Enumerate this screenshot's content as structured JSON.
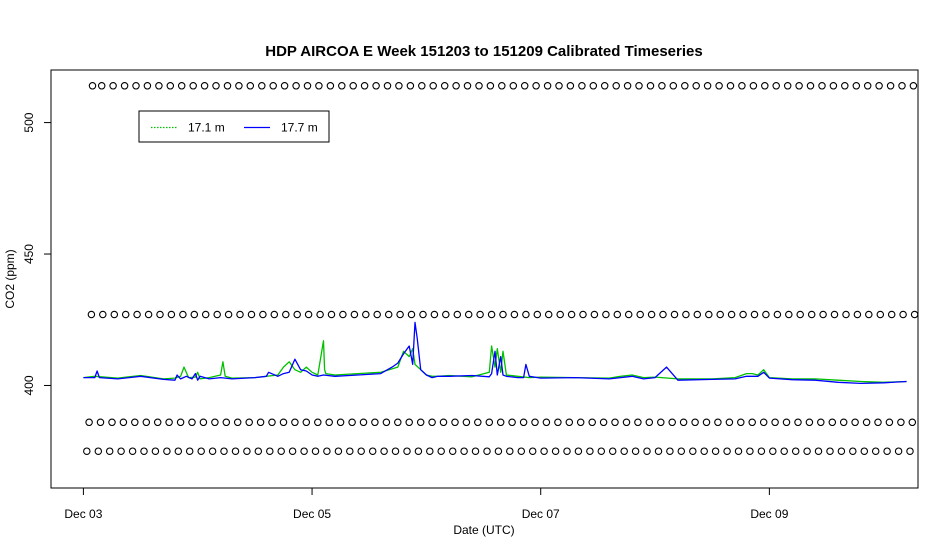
{
  "chart_data": {
    "type": "line",
    "title": "HDP AIRCOA E  Week 151203 to 151209  Calibrated Timeseries",
    "xlabel": "Date (UTC)",
    "ylabel": "CO2 (ppm)",
    "x_unit": "days (UTC)",
    "xlim": [
      0,
      7.3
    ],
    "ylim": [
      361,
      520
    ],
    "x_ticks": [
      {
        "value": 0,
        "label": "Dec 03"
      },
      {
        "value": 2,
        "label": "Dec 05"
      },
      {
        "value": 4,
        "label": "Dec 07"
      },
      {
        "value": 6,
        "label": "Dec 09"
      }
    ],
    "y_ticks": [
      {
        "value": 400,
        "label": "400"
      },
      {
        "value": 450,
        "label": "450"
      },
      {
        "value": 500,
        "label": "500"
      }
    ],
    "grid": false,
    "legend": {
      "position": "top-left",
      "entries": [
        {
          "label": "17.1 m",
          "color": "#00c000",
          "style": "dotted"
        },
        {
          "label": "17.7 m",
          "color": "#0000ff",
          "style": "solid"
        }
      ]
    },
    "series": [
      {
        "name": "17.1 m",
        "color": "#00c000",
        "x": [
          0.0,
          0.1,
          0.3,
          0.5,
          0.7,
          0.8,
          0.85,
          0.88,
          0.92,
          0.98,
          1.0,
          1.02,
          1.1,
          1.2,
          1.22,
          1.24,
          1.3,
          1.5,
          1.7,
          1.75,
          1.8,
          1.85,
          1.9,
          1.95,
          2.0,
          2.05,
          2.1,
          2.11,
          2.12,
          2.2,
          2.4,
          2.6,
          2.75,
          2.8,
          2.85,
          2.88,
          2.9,
          2.95,
          3.0,
          3.05,
          3.1,
          3.2,
          3.4,
          3.55,
          3.57,
          3.6,
          3.62,
          3.65,
          3.67,
          3.7,
          3.8,
          3.9,
          4.0,
          4.3,
          4.6,
          4.7,
          4.8,
          4.9,
          5.0,
          5.2,
          5.5,
          5.7,
          5.8,
          5.85,
          5.9,
          5.95,
          6.0,
          6.2,
          6.4,
          6.6,
          6.8,
          7.0,
          7.2
        ],
        "values": [
          403,
          403.5,
          402.8,
          403.8,
          402.5,
          402.8,
          403.5,
          407,
          403,
          403.2,
          405,
          402.5,
          403,
          404,
          409,
          403.5,
          402.8,
          403,
          404,
          407,
          409,
          406,
          405,
          407,
          405,
          404,
          417,
          406,
          404.5,
          404,
          404.5,
          405,
          407,
          413,
          411,
          414,
          408,
          406,
          404,
          403.5,
          403.5,
          403.8,
          403.3,
          405,
          415,
          407,
          414,
          405,
          413,
          404,
          403.5,
          403,
          403.2,
          403,
          402.8,
          403.5,
          404,
          403,
          403.2,
          402.5,
          402.5,
          403,
          404.5,
          404.5,
          404,
          406,
          403,
          402.5,
          402.5,
          402,
          401.5,
          401.2,
          401.5
        ]
      },
      {
        "name": "17.7 m",
        "color": "#0000ff",
        "x": [
          0.0,
          0.1,
          0.12,
          0.14,
          0.3,
          0.5,
          0.7,
          0.8,
          0.82,
          0.85,
          0.9,
          0.95,
          0.98,
          1.0,
          1.02,
          1.1,
          1.2,
          1.3,
          1.5,
          1.6,
          1.62,
          1.7,
          1.75,
          1.8,
          1.85,
          1.9,
          1.95,
          2.0,
          2.05,
          2.1,
          2.2,
          2.4,
          2.6,
          2.7,
          2.75,
          2.8,
          2.85,
          2.88,
          2.9,
          2.92,
          2.95,
          3.0,
          3.05,
          3.1,
          3.2,
          3.4,
          3.55,
          3.57,
          3.6,
          3.62,
          3.65,
          3.67,
          3.7,
          3.8,
          3.85,
          3.87,
          3.9,
          4.0,
          4.3,
          4.6,
          4.7,
          4.8,
          4.9,
          5.0,
          5.1,
          5.2,
          5.5,
          5.7,
          5.8,
          5.85,
          5.9,
          5.95,
          6.0,
          6.2,
          6.4,
          6.6,
          6.8,
          7.0,
          7.2
        ],
        "values": [
          403,
          403,
          405.5,
          403,
          402.5,
          403.5,
          402.3,
          402,
          404,
          402.5,
          403.5,
          402.5,
          404.5,
          402,
          403.5,
          402.5,
          403,
          402.5,
          403,
          403.5,
          405,
          403.5,
          404.5,
          405,
          410,
          406,
          405.5,
          404,
          403.5,
          404,
          403.5,
          404,
          404.5,
          407,
          408.5,
          412,
          415,
          408,
          424,
          418,
          406,
          404,
          403,
          403.5,
          403.5,
          403.8,
          403.3,
          404.5,
          413,
          404,
          411,
          404,
          403.5,
          403,
          403,
          408,
          403.5,
          402.8,
          403,
          402.5,
          403,
          403.5,
          402.5,
          403,
          407,
          402,
          402.3,
          402.5,
          403.5,
          403.5,
          403.5,
          405,
          402.8,
          402.2,
          402,
          401.2,
          400.8,
          401,
          401.5
        ]
      },
      {
        "name": "",
        "type": "scatter",
        "marker": "open-circle",
        "x": [
          0.08,
          0.16,
          0.26,
          0.36,
          0.46,
          0.56,
          0.66,
          0.76,
          0.86,
          0.96,
          1.06,
          1.16,
          1.26,
          1.36,
          1.46,
          1.56,
          1.66,
          1.76,
          1.86,
          1.96,
          2.06,
          2.16,
          2.26,
          2.36,
          2.46,
          2.56,
          2.66,
          2.76,
          2.86,
          2.96,
          3.06,
          3.16,
          3.26,
          3.36,
          3.46,
          3.56,
          3.66,
          3.76,
          3.86,
          3.96,
          4.06,
          4.16,
          4.26,
          4.36,
          4.46,
          4.56,
          4.66,
          4.76,
          4.86,
          4.96,
          5.06,
          5.16,
          5.26,
          5.36,
          5.46,
          5.56,
          5.66,
          5.76,
          5.86,
          5.96,
          6.06,
          6.16,
          6.26,
          6.36,
          6.46,
          6.56,
          6.66,
          6.76,
          6.86,
          6.96,
          7.06,
          7.16,
          7.26
        ],
        "values": [
          514,
          514,
          514,
          514,
          514,
          514,
          514,
          514,
          514,
          514,
          514,
          514,
          514,
          514,
          514,
          514,
          514,
          514,
          514,
          514,
          514,
          514,
          514,
          514,
          514,
          514,
          514,
          514,
          514,
          514,
          514,
          514,
          514,
          514,
          514,
          514,
          514,
          514,
          514,
          514,
          514,
          514,
          514,
          514,
          514,
          514,
          514,
          514,
          514,
          514,
          514,
          514,
          514,
          514,
          514,
          514,
          514,
          514,
          514,
          514,
          514,
          514,
          514,
          514,
          514,
          514,
          514,
          514,
          514,
          514,
          514,
          514,
          514
        ]
      },
      {
        "name": "",
        "type": "scatter",
        "marker": "open-circle",
        "x": [
          0.07,
          0.17,
          0.27,
          0.37,
          0.47,
          0.57,
          0.67,
          0.77,
          0.87,
          0.97,
          1.07,
          1.17,
          1.27,
          1.37,
          1.47,
          1.57,
          1.67,
          1.77,
          1.87,
          1.97,
          2.07,
          2.17,
          2.27,
          2.37,
          2.47,
          2.57,
          2.67,
          2.77,
          2.87,
          2.97,
          3.07,
          3.17,
          3.27,
          3.37,
          3.47,
          3.57,
          3.67,
          3.77,
          3.87,
          3.97,
          4.07,
          4.17,
          4.27,
          4.37,
          4.47,
          4.57,
          4.67,
          4.77,
          4.87,
          4.97,
          5.07,
          5.17,
          5.27,
          5.37,
          5.47,
          5.57,
          5.67,
          5.77,
          5.87,
          5.97,
          6.07,
          6.17,
          6.27,
          6.37,
          6.47,
          6.57,
          6.67,
          6.77,
          6.87,
          6.97,
          7.07,
          7.17,
          7.27
        ],
        "values": [
          427,
          427,
          427,
          427,
          427,
          427,
          427,
          427,
          427,
          427,
          427,
          427,
          427,
          427,
          427,
          427,
          427,
          427,
          427,
          427,
          427,
          427,
          427,
          427,
          427,
          427,
          427,
          427,
          427,
          427,
          427,
          427,
          427,
          427,
          427,
          427,
          427,
          427,
          427,
          427,
          427,
          427,
          427,
          427,
          427,
          427,
          427,
          427,
          427,
          427,
          427,
          427,
          427,
          427,
          427,
          427,
          427,
          427,
          427,
          427,
          427,
          427,
          427,
          427,
          427,
          427,
          427,
          427,
          427,
          427,
          427,
          427,
          427
        ]
      },
      {
        "name": "",
        "type": "scatter",
        "marker": "open-circle",
        "x": [
          0.05,
          0.15,
          0.25,
          0.35,
          0.45,
          0.55,
          0.65,
          0.75,
          0.85,
          0.95,
          1.05,
          1.15,
          1.25,
          1.35,
          1.45,
          1.55,
          1.65,
          1.75,
          1.85,
          1.95,
          2.05,
          2.15,
          2.25,
          2.35,
          2.45,
          2.55,
          2.65,
          2.75,
          2.85,
          2.95,
          3.05,
          3.15,
          3.25,
          3.35,
          3.45,
          3.55,
          3.65,
          3.75,
          3.85,
          3.95,
          4.05,
          4.15,
          4.25,
          4.35,
          4.45,
          4.55,
          4.65,
          4.75,
          4.85,
          4.95,
          5.05,
          5.15,
          5.25,
          5.35,
          5.45,
          5.55,
          5.65,
          5.75,
          5.85,
          5.95,
          6.05,
          6.15,
          6.25,
          6.35,
          6.45,
          6.55,
          6.65,
          6.75,
          6.85,
          6.95,
          7.05,
          7.15,
          7.25
        ],
        "values": [
          386,
          386,
          386,
          386,
          386,
          386,
          386,
          386,
          386,
          386,
          386,
          386,
          386,
          386,
          386,
          386,
          386,
          386,
          386,
          386,
          386,
          386,
          386,
          386,
          386,
          386,
          386,
          386,
          386,
          386,
          386,
          386,
          386,
          386,
          386,
          386,
          386,
          386,
          386,
          386,
          386,
          386,
          386,
          386,
          386,
          386,
          386,
          386,
          386,
          386,
          386,
          386,
          386,
          386,
          386,
          386,
          386,
          386,
          386,
          386,
          386,
          386,
          386,
          386,
          386,
          386,
          386,
          386,
          386,
          386,
          386,
          386,
          386
        ]
      },
      {
        "name": "",
        "type": "scatter",
        "marker": "open-circle",
        "x": [
          0.03,
          0.13,
          0.23,
          0.33,
          0.43,
          0.53,
          0.63,
          0.73,
          0.83,
          0.93,
          1.03,
          1.13,
          1.23,
          1.33,
          1.43,
          1.53,
          1.63,
          1.73,
          1.83,
          1.93,
          2.03,
          2.13,
          2.23,
          2.33,
          2.43,
          2.53,
          2.63,
          2.73,
          2.83,
          2.93,
          3.03,
          3.13,
          3.23,
          3.33,
          3.43,
          3.53,
          3.63,
          3.73,
          3.83,
          3.93,
          4.03,
          4.13,
          4.23,
          4.33,
          4.43,
          4.53,
          4.63,
          4.73,
          4.83,
          4.93,
          5.03,
          5.13,
          5.23,
          5.33,
          5.43,
          5.53,
          5.63,
          5.73,
          5.83,
          5.93,
          6.03,
          6.13,
          6.23,
          6.33,
          6.43,
          6.53,
          6.63,
          6.73,
          6.83,
          6.93,
          7.03,
          7.13,
          7.23
        ],
        "values": [
          375,
          375,
          375,
          375,
          375,
          375,
          375,
          375,
          375,
          375,
          375,
          375,
          375,
          375,
          375,
          375,
          375,
          375,
          375,
          375,
          375,
          375,
          375,
          375,
          375,
          375,
          375,
          375,
          375,
          375,
          375,
          375,
          375,
          375,
          375,
          375,
          375,
          375,
          375,
          375,
          375,
          375,
          375,
          375,
          375,
          375,
          375,
          375,
          375,
          375,
          375,
          375,
          375,
          375,
          375,
          375,
          375,
          375,
          375,
          375,
          375,
          375,
          375,
          375,
          375,
          375,
          375,
          375,
          375,
          375,
          375,
          375,
          375
        ]
      }
    ]
  }
}
